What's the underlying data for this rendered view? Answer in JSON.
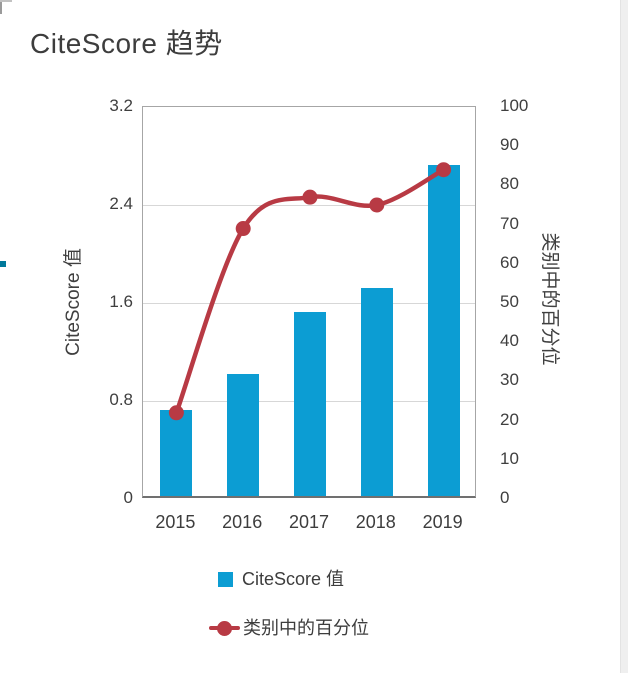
{
  "page": {
    "title": "CiteScore 趋势"
  },
  "chart_data": {
    "type": "bar+line",
    "title": "CiteScore 趋势",
    "categories": [
      "2015",
      "2016",
      "2017",
      "2018",
      "2019"
    ],
    "series": [
      {
        "name": "CiteScore 值",
        "type": "bar",
        "axis": "left",
        "color": "#0c9dd3",
        "values": [
          0.7,
          1.0,
          1.5,
          1.7,
          2.7
        ]
      },
      {
        "name": "类别中的百分位",
        "type": "line",
        "axis": "right",
        "color": "#b83a44",
        "values": [
          22,
          69,
          77,
          75,
          84
        ]
      }
    ],
    "left_axis": {
      "label": "CiteScore 值",
      "min": 0,
      "max": 3.2,
      "ticks": [
        "3.2",
        "2.4",
        "1.6",
        "0.8",
        "0"
      ]
    },
    "right_axis": {
      "label": "类别中的百分位",
      "min": 0,
      "max": 100,
      "ticks": [
        "100",
        "90",
        "80",
        "70",
        "60",
        "50",
        "40",
        "30",
        "20",
        "10",
        "0"
      ]
    },
    "grid": "horizontal gridlines at left-axis ticks",
    "legend_position": "bottom"
  }
}
